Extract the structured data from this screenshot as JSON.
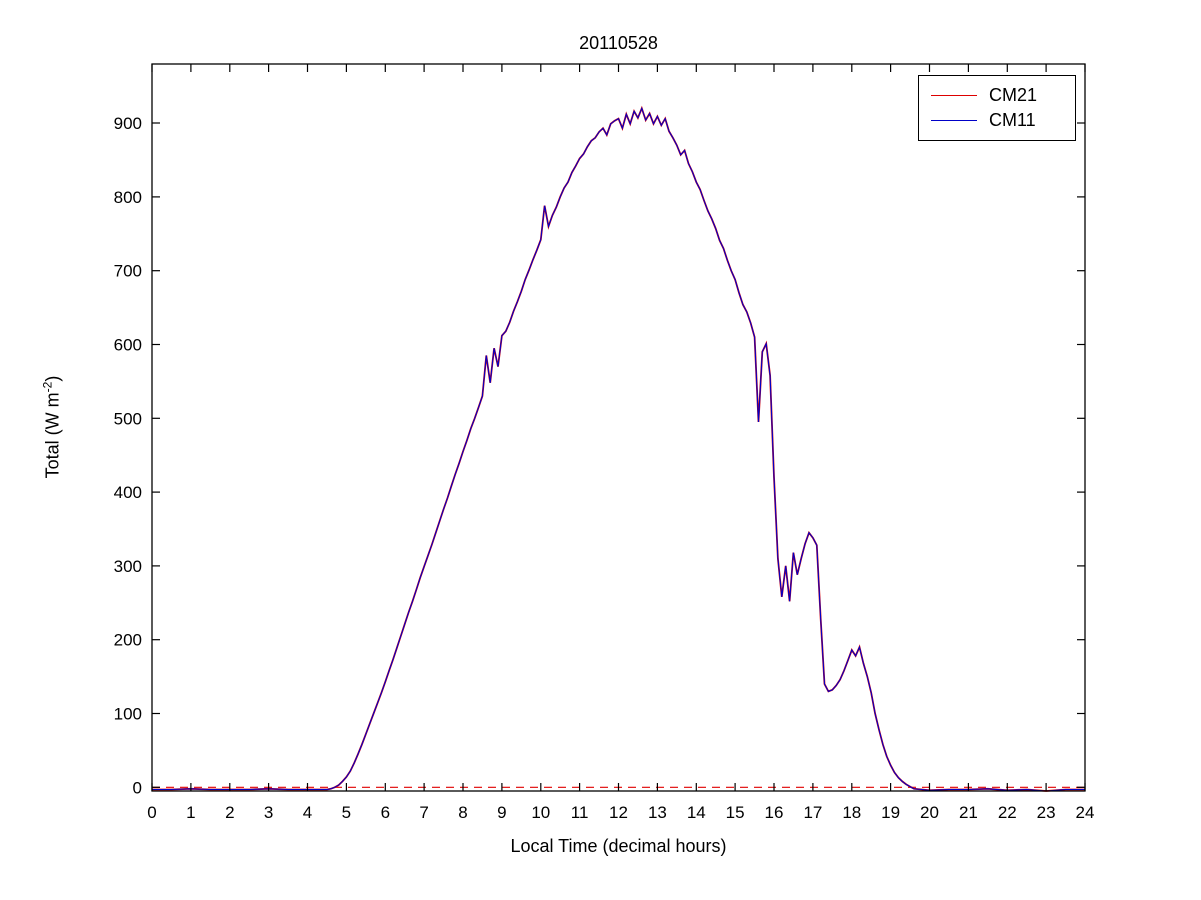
{
  "figure": {
    "title": "20110528"
  },
  "chart_data": {
    "type": "line",
    "title": "20110528",
    "xlabel": "Local Time (decimal hours)",
    "ylabel": "Total (W m-2)",
    "ylabel_parts": {
      "prefix": "Total (W m",
      "sup": "-2",
      "suffix": ")"
    },
    "xlim": [
      0,
      24
    ],
    "ylim": [
      -5,
      980
    ],
    "x_ticks": [
      0,
      1,
      2,
      3,
      4,
      5,
      6,
      7,
      8,
      9,
      10,
      11,
      12,
      13,
      14,
      15,
      16,
      17,
      18,
      19,
      20,
      21,
      22,
      23,
      24
    ],
    "y_ticks": [
      0,
      100,
      200,
      300,
      400,
      500,
      600,
      700,
      800,
      900
    ],
    "grid": false,
    "legend_position": "top-right",
    "axis_color": "#000000",
    "zero_line": {
      "y": 0,
      "color": "#e00000",
      "style": "dashed"
    },
    "x": [
      0,
      0.5,
      1,
      1.5,
      2,
      2.5,
      3,
      3.5,
      4,
      4.3,
      4.5,
      4.6,
      4.7,
      4.8,
      4.9,
      5.0,
      5.1,
      5.2,
      5.3,
      5.4,
      5.5,
      5.6,
      5.7,
      5.8,
      5.9,
      6.0,
      6.1,
      6.2,
      6.3,
      6.4,
      6.5,
      6.6,
      6.7,
      6.8,
      6.9,
      7.0,
      7.1,
      7.2,
      7.3,
      7.4,
      7.5,
      7.6,
      7.7,
      7.8,
      7.9,
      8.0,
      8.1,
      8.2,
      8.3,
      8.4,
      8.5,
      8.6,
      8.7,
      8.8,
      8.9,
      9.0,
      9.1,
      9.2,
      9.3,
      9.4,
      9.5,
      9.6,
      9.7,
      9.8,
      9.9,
      10.0,
      10.1,
      10.2,
      10.3,
      10.4,
      10.5,
      10.6,
      10.7,
      10.8,
      10.9,
      11.0,
      11.1,
      11.2,
      11.3,
      11.4,
      11.5,
      11.6,
      11.7,
      11.8,
      11.9,
      12.0,
      12.1,
      12.2,
      12.3,
      12.4,
      12.5,
      12.6,
      12.7,
      12.8,
      12.9,
      13.0,
      13.1,
      13.2,
      13.3,
      13.4,
      13.5,
      13.6,
      13.7,
      13.8,
      13.9,
      14.0,
      14.1,
      14.2,
      14.3,
      14.4,
      14.5,
      14.6,
      14.7,
      14.8,
      14.9,
      15.0,
      15.1,
      15.2,
      15.3,
      15.4,
      15.5,
      15.6,
      15.7,
      15.8,
      15.9,
      16.0,
      16.1,
      16.2,
      16.3,
      16.4,
      16.5,
      16.6,
      16.7,
      16.8,
      16.9,
      17.0,
      17.1,
      17.2,
      17.3,
      17.4,
      17.5,
      17.6,
      17.7,
      17.8,
      17.9,
      18.0,
      18.1,
      18.2,
      18.3,
      18.4,
      18.5,
      18.6,
      18.7,
      18.8,
      18.9,
      19.0,
      19.1,
      19.2,
      19.3,
      19.4,
      19.5,
      19.6,
      19.8,
      20,
      20.5,
      21,
      21.5,
      22,
      22.5,
      23,
      23.5,
      24
    ],
    "series": [
      {
        "name": "CM21",
        "color": "#dd0000",
        "values": [
          -3,
          -3,
          -2,
          -3,
          -3,
          -3,
          -2,
          -3,
          -3,
          -3,
          -3,
          -2,
          0,
          3,
          8,
          14,
          22,
          33,
          45,
          58,
          72,
          86,
          100,
          114,
          128,
          143,
          158,
          173,
          189,
          205,
          221,
          237,
          252,
          268,
          284,
          299,
          314,
          329,
          345,
          361,
          377,
          392,
          408,
          424,
          439,
          455,
          470,
          486,
          500,
          515,
          530,
          585,
          548,
          595,
          570,
          612,
          618,
          630,
          645,
          658,
          672,
          688,
          701,
          715,
          728,
          742,
          788,
          760,
          775,
          786,
          800,
          812,
          820,
          833,
          842,
          852,
          858,
          868,
          876,
          880,
          888,
          893,
          884,
          899,
          903,
          906,
          893,
          912,
          899,
          916,
          907,
          920,
          904,
          913,
          899,
          909,
          897,
          906,
          889,
          880,
          870,
          857,
          863,
          845,
          834,
          820,
          810,
          795,
          781,
          770,
          757,
          741,
          730,
          714,
          700,
          688,
          670,
          654,
          644,
          629,
          610,
          495,
          590,
          601,
          558,
          420,
          310,
          258,
          300,
          252,
          318,
          288,
          310,
          330,
          345,
          338,
          328,
          228,
          140,
          130,
          132,
          138,
          146,
          158,
          172,
          186,
          178,
          190,
          168,
          150,
          128,
          100,
          78,
          58,
          42,
          30,
          20,
          13,
          8,
          4,
          1,
          -2,
          -3,
          -4,
          -3,
          -3,
          -2,
          -4,
          -3,
          -5,
          -3,
          -3
        ]
      },
      {
        "name": "CM11",
        "color": "#0000c8",
        "values": [
          -3,
          -3,
          -2,
          -3,
          -3,
          -3,
          -2,
          -3,
          -3,
          -3,
          -3,
          -2,
          0,
          3,
          8,
          14,
          22,
          33,
          45,
          58,
          72,
          86,
          100,
          114,
          128,
          143,
          158,
          173,
          189,
          205,
          221,
          237,
          252,
          268,
          284,
          299,
          314,
          329,
          345,
          361,
          377,
          392,
          408,
          424,
          439,
          455,
          470,
          486,
          500,
          515,
          530,
          585,
          548,
          595,
          570,
          612,
          618,
          630,
          645,
          658,
          672,
          688,
          701,
          715,
          728,
          742,
          788,
          760,
          775,
          786,
          800,
          812,
          820,
          833,
          842,
          852,
          858,
          868,
          876,
          880,
          888,
          893,
          884,
          899,
          903,
          906,
          893,
          912,
          899,
          916,
          907,
          920,
          904,
          913,
          899,
          909,
          897,
          906,
          889,
          880,
          870,
          857,
          863,
          845,
          834,
          820,
          810,
          795,
          781,
          770,
          757,
          741,
          730,
          714,
          700,
          688,
          670,
          654,
          644,
          629,
          610,
          495,
          590,
          601,
          558,
          420,
          310,
          258,
          300,
          252,
          318,
          288,
          310,
          330,
          345,
          338,
          328,
          228,
          140,
          130,
          132,
          138,
          146,
          158,
          172,
          186,
          178,
          190,
          168,
          150,
          128,
          100,
          78,
          58,
          42,
          30,
          20,
          13,
          8,
          4,
          1,
          -2,
          -3,
          -4,
          -3,
          -3,
          -2,
          -4,
          -3,
          -5,
          -3,
          -3
        ]
      }
    ]
  }
}
